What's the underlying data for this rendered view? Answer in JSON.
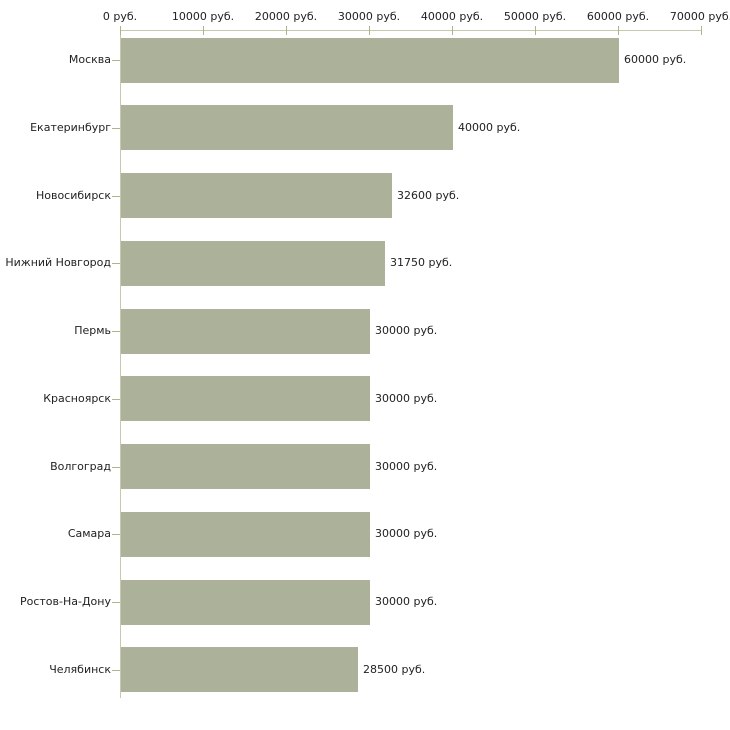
{
  "chart_data": {
    "type": "bar",
    "orientation": "horizontal",
    "title": "",
    "xlabel": "",
    "ylabel": "",
    "unit": "руб.",
    "categories": [
      "Москва",
      "Екатеринбург",
      "Новосибирск",
      "Нижний Новгород",
      "Пермь",
      "Красноярск",
      "Волгоград",
      "Самара",
      "Ростов-На-Дону",
      "Челябинск"
    ],
    "values": [
      60000,
      40000,
      32600,
      31750,
      30000,
      30000,
      30000,
      30000,
      30000,
      28500
    ],
    "value_labels": [
      "60000 руб.",
      "40000 руб.",
      "32600 руб.",
      "31750 руб.",
      "30000 руб.",
      "30000 руб.",
      "30000 руб.",
      "30000 руб.",
      "30000 руб.",
      "28500 руб."
    ],
    "x_axis": {
      "position": "top",
      "xlim": [
        0,
        70000
      ],
      "ticks": [
        0,
        10000,
        20000,
        30000,
        40000,
        50000,
        60000,
        70000
      ],
      "tick_labels": [
        "0 руб.",
        "10000 руб.",
        "20000 руб.",
        "30000 руб.",
        "40000 руб.",
        "50000 руб.",
        "60000 руб.",
        "70000 руб."
      ]
    },
    "grid": false,
    "legend_position": "none",
    "colors": {
      "bar": "#abb299",
      "axis_line": "#c8c8ae",
      "tick": "#b2b28a",
      "text": "#222222",
      "background": "#ffffff"
    }
  }
}
